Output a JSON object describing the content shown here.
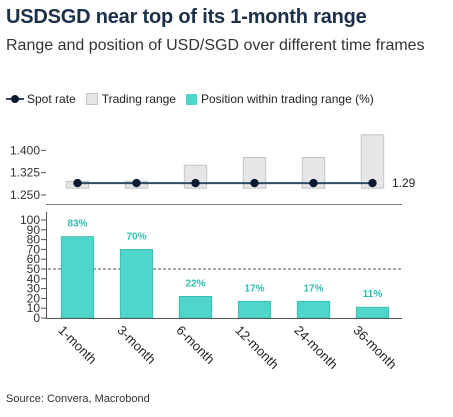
{
  "title": "USDSGD near top of its 1-month range",
  "subtitle": "Range and position of USD/SGD over different time frames",
  "source": "Source: Convera, Macrobond",
  "colors": {
    "title": "#1b3049",
    "range_fill": "#e6e6e6",
    "range_stroke": "#c4c4c4",
    "bar_fill": "#4dd6c9",
    "bar_stroke": "#38b5a9",
    "spot_line": "#2f4a68",
    "spot_marker": "#0b1a33",
    "label_text": "#2bbfb0"
  },
  "legend": [
    {
      "label": "Spot rate",
      "swatch": "line"
    },
    {
      "label": "Trading range",
      "swatch": "range"
    },
    {
      "label": "Position within trading range (%)",
      "swatch": "bar"
    }
  ],
  "chart_data": [
    {
      "type": "range",
      "categories": [
        "1-month",
        "3-month",
        "6-month",
        "12-month",
        "24-month",
        "36-month"
      ],
      "series": [
        {
          "name": "Trading range",
          "low": [
            1.273,
            1.273,
            1.273,
            1.273,
            1.273,
            1.273
          ],
          "high": [
            1.296,
            1.296,
            1.35,
            1.376,
            1.376,
            1.452
          ]
        },
        {
          "name": "Spot rate",
          "values": [
            1.29,
            1.29,
            1.29,
            1.29,
            1.29,
            1.29
          ]
        }
      ],
      "yticks": [
        "1.250",
        "1.325",
        "1.400"
      ],
      "ylim": [
        1.25,
        1.475
      ],
      "end_label": "1.29"
    },
    {
      "type": "bar",
      "categories": [
        "1-month",
        "3-month",
        "6-month",
        "12-month",
        "24-month",
        "36-month"
      ],
      "series": [
        {
          "name": "Position within trading range (%)",
          "values": [
            83,
            70,
            22,
            17,
            17,
            11
          ]
        }
      ],
      "data_labels": [
        "83%",
        "70%",
        "22%",
        "17%",
        "17%",
        "11%"
      ],
      "yticks": [
        "0",
        "10",
        "20",
        "30",
        "40",
        "50",
        "60",
        "70",
        "80",
        "90",
        "100"
      ],
      "ylim": [
        0,
        100
      ],
      "reference_line": 50
    }
  ]
}
